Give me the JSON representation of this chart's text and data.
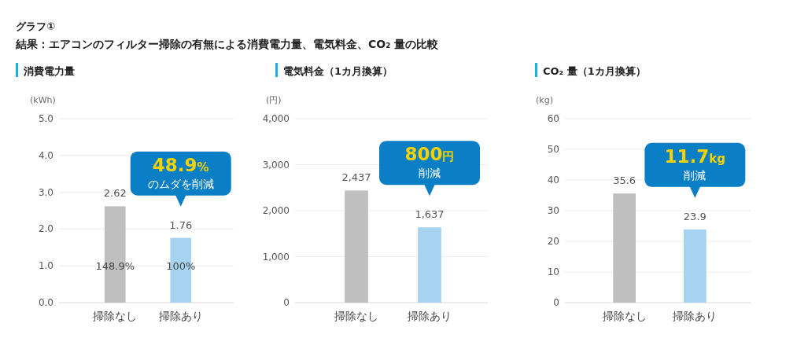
{
  "chart_data": [
    {
      "type": "bar",
      "title": "消費電力量",
      "ylabel": "(kWh)",
      "categories": [
        "掃除なし",
        "掃除あり"
      ],
      "values": [
        2.62,
        1.76
      ],
      "colors": [
        "#bfbfbf",
        "#a6d3f0"
      ],
      "value_labels": [
        "2.62",
        "1.76"
      ],
      "ylim": [
        0,
        5
      ],
      "yticks": [
        {
          "value": 0,
          "label": "0.0"
        },
        {
          "value": 1,
          "label": "1.0"
        },
        {
          "value": 2,
          "label": "2.0"
        },
        {
          "value": 3,
          "label": "3.0"
        },
        {
          "value": 4,
          "label": "4.0"
        },
        {
          "value": 5,
          "label": "5.0"
        }
      ],
      "grid": "y",
      "annotations": [
        "グラフ①",
        "結果：エアコンのフィルター掃除の有無による消費電力量、電気料金、CO₂ 量の比較",
        "48.9%",
        "のムダを削減",
        "148.9%",
        "100%"
      ]
    },
    {
      "type": "bar",
      "title": "電気料金（1カ月換算）",
      "ylabel": "(円)",
      "categories": [
        "掃除なし",
        "掃除あり"
      ],
      "values": [
        2437,
        1637
      ],
      "colors": [
        "#bfbfbf",
        "#a6d3f0"
      ],
      "value_labels": [
        "2,437",
        "1,637"
      ],
      "ylim": [
        0,
        4000
      ],
      "yticks": [
        0,
        {
          "value": 1000,
          "label": "1,000"
        },
        {
          "value": 2000,
          "label": "2,000"
        },
        {
          "value": 3000,
          "label": "3,000"
        },
        {
          "value": 4000,
          "label": "4,000"
        }
      ],
      "grid": "y",
      "annotations": [
        "800円",
        "削減"
      ]
    },
    {
      "type": "bar",
      "title": "CO₂ 量（1カ月換算）",
      "ylabel": "(kg)",
      "categories": [
        "掃除なし",
        "掃除あり"
      ],
      "values": [
        35.6,
        23.9
      ],
      "colors": [
        "#bfbfbf",
        "#a6d3f0"
      ],
      "value_labels": [
        "35.6",
        "23.9"
      ],
      "ylim": [
        0,
        60
      ],
      "yticks": [
        0,
        10,
        20,
        30,
        40,
        50,
        60
      ],
      "grid": "y",
      "annotations": [
        "11.7kg",
        "削減"
      ]
    }
  ]
}
